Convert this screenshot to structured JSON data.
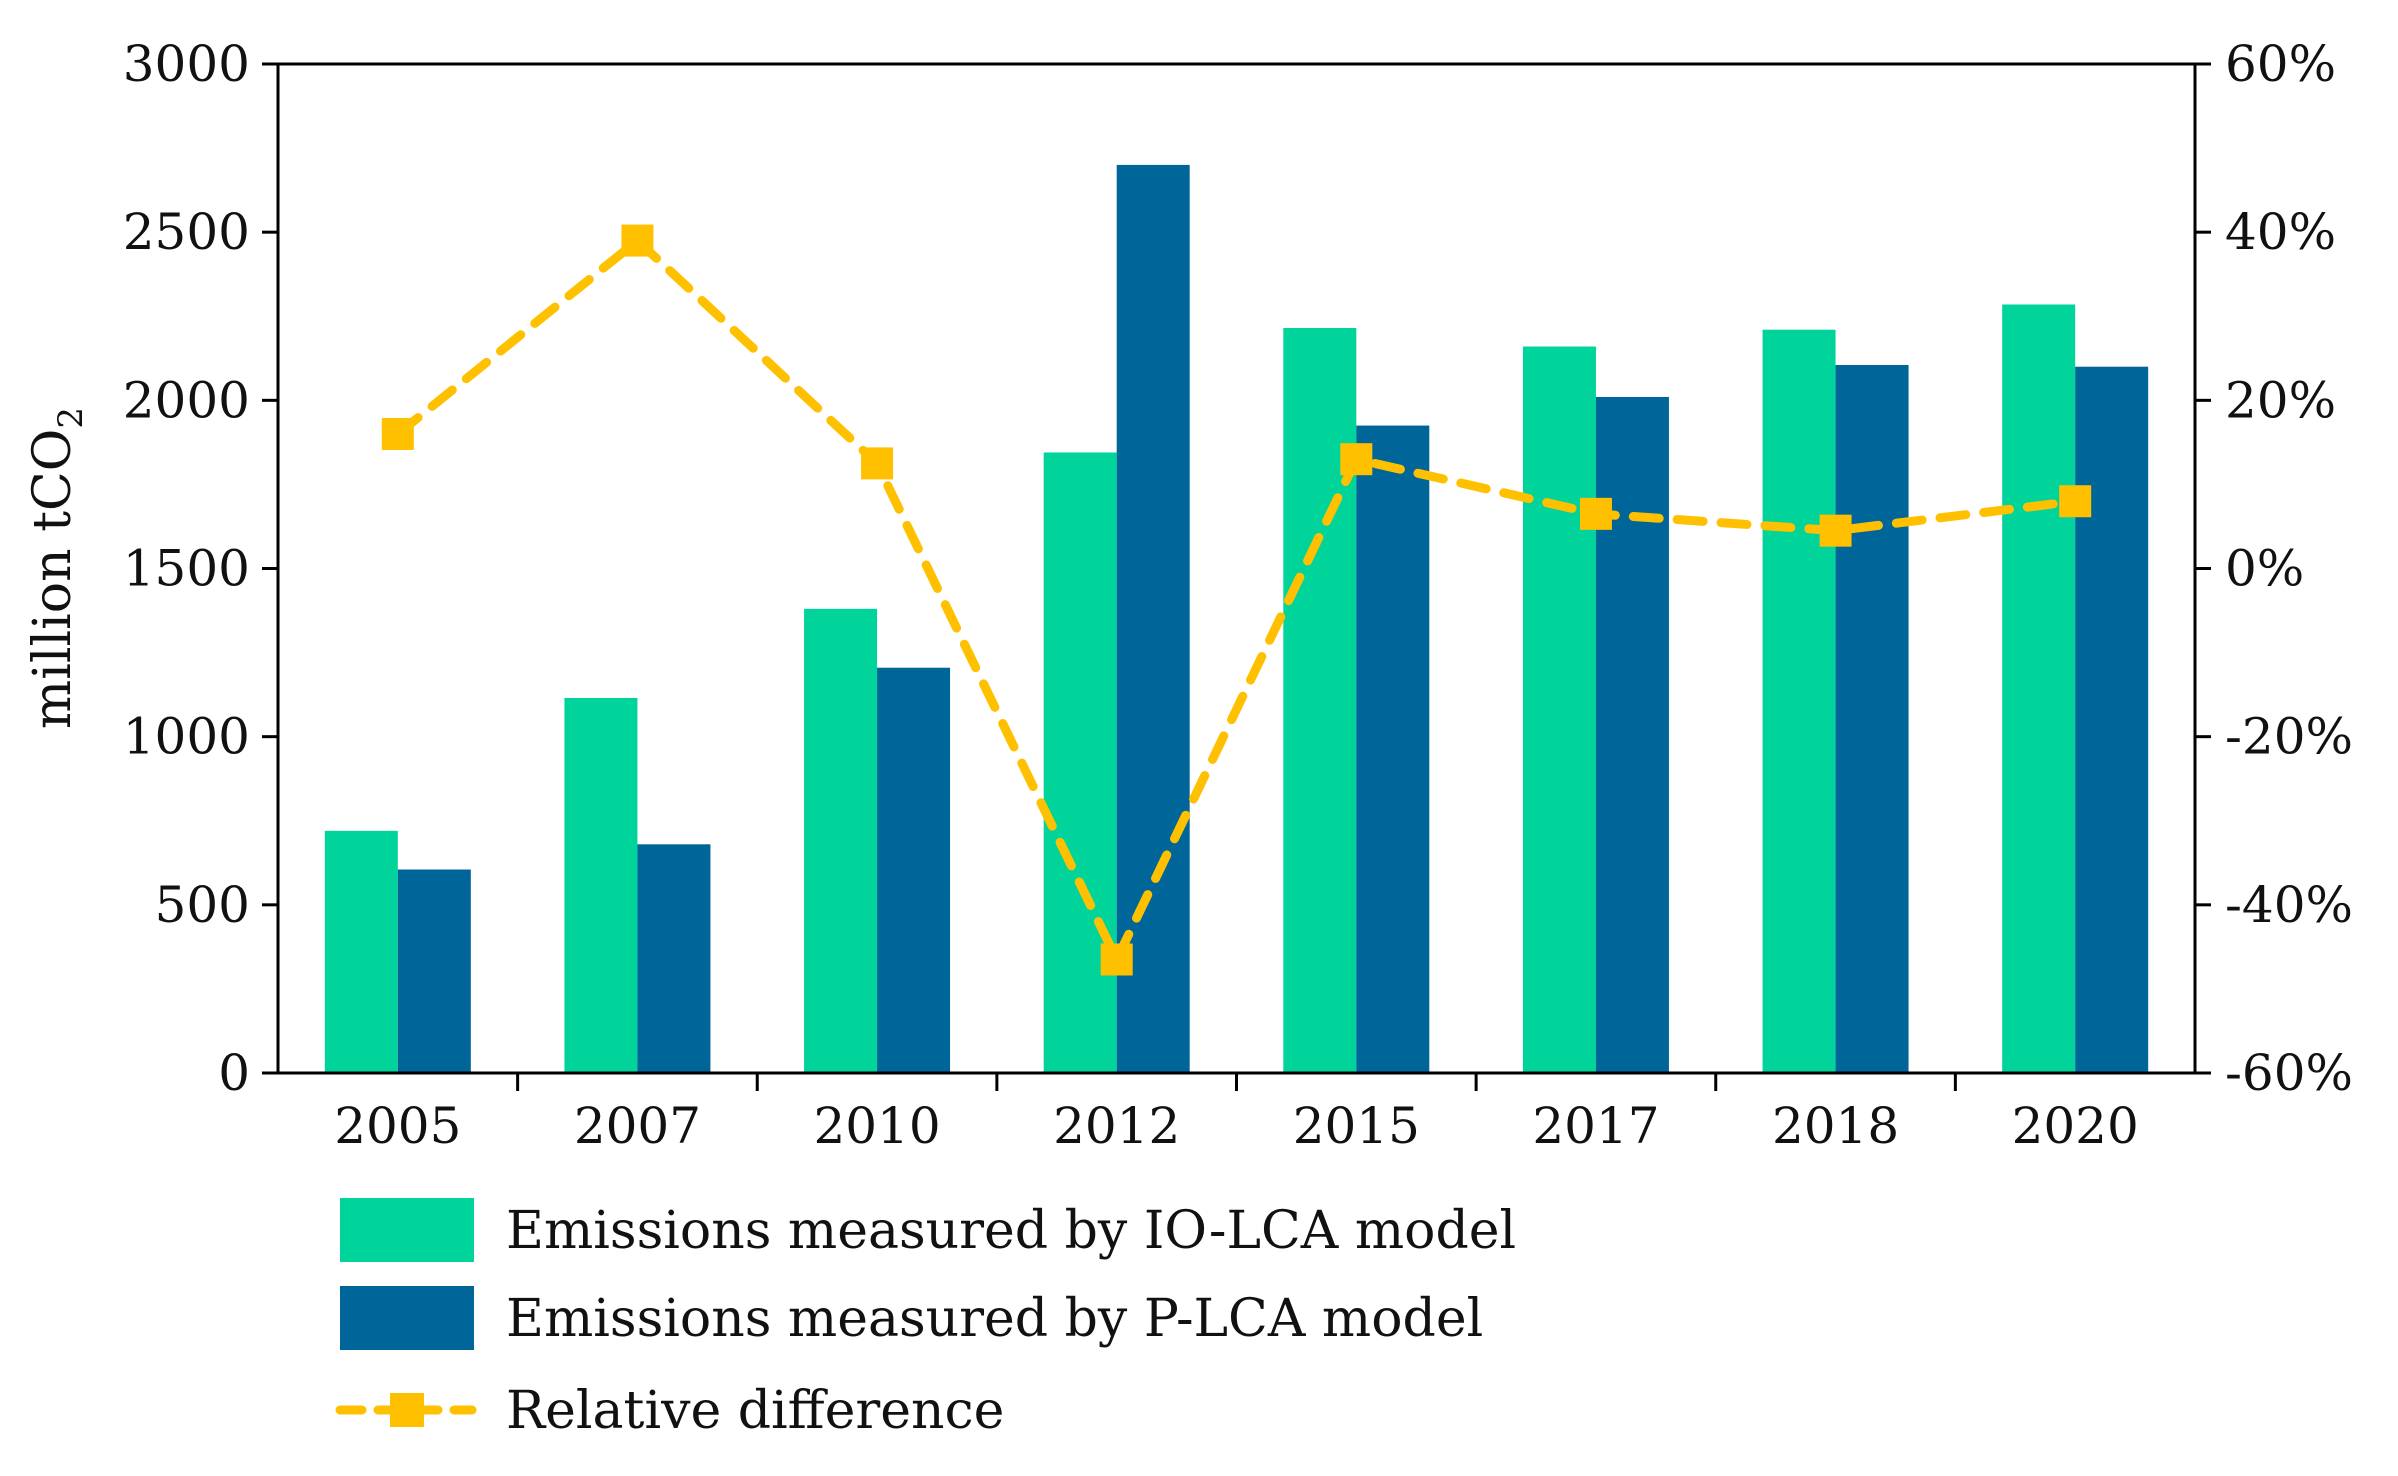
{
  "chart_data": {
    "type": "bar",
    "categories": [
      "2005",
      "2007",
      "2010",
      "2012",
      "2015",
      "2017",
      "2018",
      "2020"
    ],
    "series": [
      {
        "name": "Emissions measured by IO-LCA model",
        "axis": "left",
        "color": "#00d49a",
        "values": [
          720,
          1115,
          1380,
          1845,
          2215,
          2160,
          2210,
          2285
        ]
      },
      {
        "name": "Emissions measured by P-LCA model",
        "axis": "left",
        "color": "#006599",
        "values": [
          605,
          680,
          1205,
          2700,
          1925,
          2010,
          2105,
          2100
        ]
      },
      {
        "name": "Relative difference",
        "type": "line",
        "axis": "right",
        "color": "#ffc000",
        "values": [
          0.16,
          0.39,
          0.125,
          -0.465,
          0.13,
          0.065,
          0.045,
          0.08
        ]
      }
    ],
    "y_left": {
      "label_main": "million tCO",
      "label_sub": "2",
      "ylim": [
        0,
        3000
      ],
      "ticks": [
        0,
        500,
        1000,
        1500,
        2000,
        2500,
        3000
      ],
      "tick_labels": [
        "0",
        "500",
        "1000",
        "1500",
        "2000",
        "2500",
        "3000"
      ]
    },
    "y_right": {
      "ylim": [
        -0.6,
        0.6
      ],
      "ticks": [
        -0.6,
        -0.4,
        -0.2,
        0,
        0.2,
        0.4,
        0.6
      ],
      "tick_labels": [
        "-60%",
        "-40%",
        "-20%",
        "0%",
        "20%",
        "40%",
        "60%"
      ]
    },
    "legend": {
      "position": "bottom-left",
      "items": [
        "Emissions measured by IO-LCA model",
        "Emissions measured by P-LCA model",
        "Relative difference"
      ]
    },
    "grid": false
  }
}
